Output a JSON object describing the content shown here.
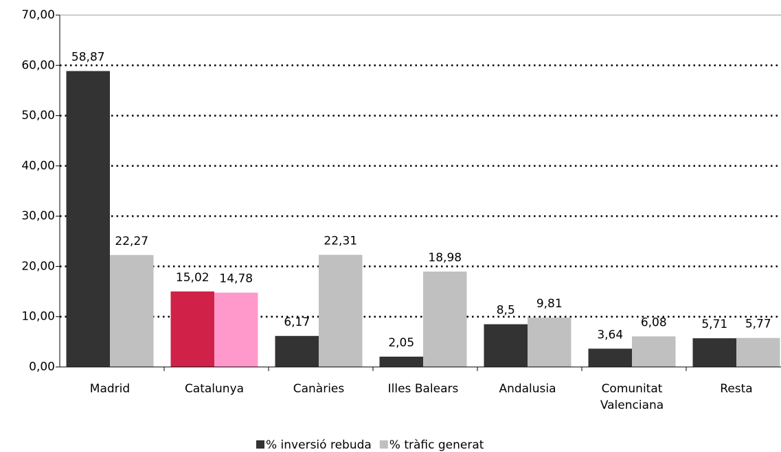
{
  "chart_data": {
    "type": "bar",
    "categories": [
      "Madrid",
      "Catalunya",
      "Canàries",
      "Illes Balears",
      "Andalusia",
      "Comunitat Valenciana",
      "Resta"
    ],
    "series": [
      {
        "name": "% inversió rebuda",
        "color": "#333333",
        "colors": [
          "#333333",
          "#d02248",
          "#333333",
          "#333333",
          "#333333",
          "#333333",
          "#333333"
        ],
        "values": [
          58.87,
          15.02,
          6.17,
          2.05,
          8.5,
          3.64,
          5.71
        ],
        "value_labels": [
          "58,87",
          "15,02",
          "6,17",
          "2,05",
          "8,5",
          "3,64",
          "5,71"
        ]
      },
      {
        "name": "% tràfic generat",
        "color": "#c0c0c0",
        "colors": [
          "#c0c0c0",
          "#ff99cc",
          "#c0c0c0",
          "#c0c0c0",
          "#c0c0c0",
          "#c0c0c0",
          "#c0c0c0"
        ],
        "values": [
          22.27,
          14.78,
          22.31,
          18.98,
          9.81,
          6.08,
          5.77
        ],
        "value_labels": [
          "22,27",
          "14,78",
          "22,31",
          "18,98",
          "9,81",
          "6,08",
          "5,77"
        ]
      }
    ],
    "ylim": [
      0,
      70
    ],
    "yticks": [
      {
        "value": 0,
        "label": "0,00"
      },
      {
        "value": 10,
        "label": "10,00"
      },
      {
        "value": 20,
        "label": "20,00"
      },
      {
        "value": 30,
        "label": "30,00"
      },
      {
        "value": 40,
        "label": "40,00"
      },
      {
        "value": 50,
        "label": "50,00"
      },
      {
        "value": 60,
        "label": "60,00"
      },
      {
        "value": 70,
        "label": "70,00"
      }
    ],
    "grid": true,
    "legend": "bottom"
  }
}
